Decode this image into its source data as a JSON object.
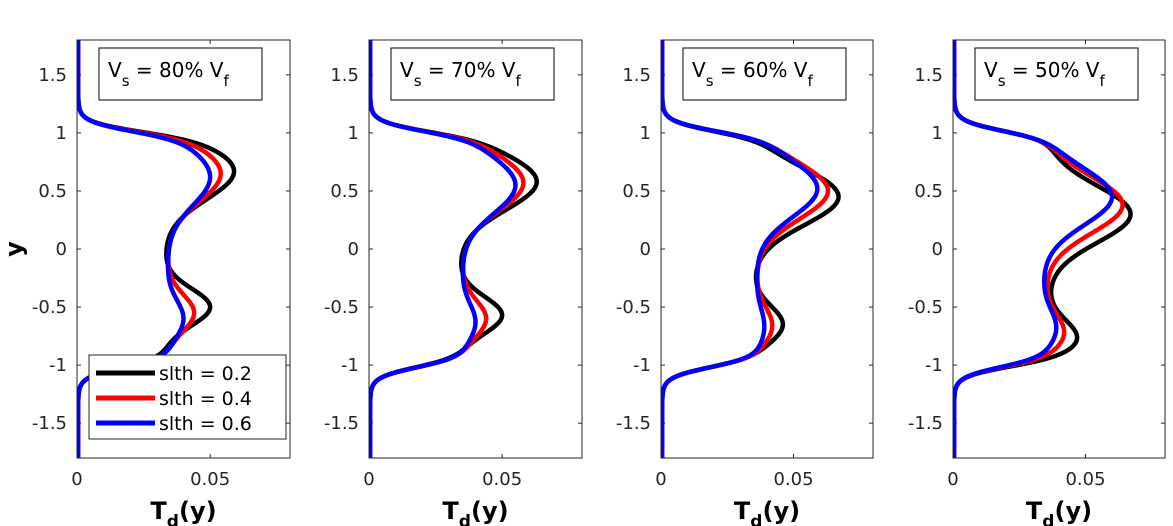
{
  "chart_data": {
    "type": "line",
    "shared": {
      "xlabel": "T",
      "xlabel_sub": "d",
      "xlabel_suffix": "(y)",
      "ylabel": "y",
      "xlim": [
        0,
        0.08
      ],
      "ylim": [
        -1.8,
        1.8
      ],
      "x_ticks": [
        0,
        0.05
      ],
      "x_tick_labels": [
        "0",
        "0.05"
      ],
      "y_ticks": [
        1.5,
        1,
        0.5,
        0,
        -0.5,
        -1,
        -1.5
      ],
      "y_tick_labels": [
        "1.5",
        "1",
        "0.5",
        "0",
        "-0.5",
        "-1",
        "-1.5"
      ],
      "series_colors": [
        "#000000",
        "#ff0000",
        "#0000ff"
      ]
    },
    "legend": {
      "placement": "bottom-left of panel 1",
      "entries": [
        "slth = 0.2",
        "slth = 0.4",
        "slth = 0.6"
      ]
    },
    "panels": [
      {
        "title_main": "V",
        "title_sub": "s",
        "title_mid": " = 80% V",
        "title_sub2": "f",
        "series": [
          {
            "name": "slth = 0.2",
            "peak_upper": 0.059,
            "peak_upper_y": 0.67,
            "min_mid": 0.033,
            "min_mid_y": 0.0,
            "peak_lower": 0.05,
            "peak_lower_y": -0.5
          },
          {
            "name": "slth = 0.4",
            "peak_upper": 0.054,
            "peak_upper_y": 0.65,
            "min_mid": 0.034,
            "min_mid_y": -0.05,
            "peak_lower": 0.044,
            "peak_lower_y": -0.55
          },
          {
            "name": "slth = 0.6",
            "peak_upper": 0.05,
            "peak_upper_y": 0.62,
            "min_mid": 0.034,
            "min_mid_y": -0.1,
            "peak_lower": 0.04,
            "peak_lower_y": -0.6
          }
        ]
      },
      {
        "title_main": "V",
        "title_sub": "s",
        "title_mid": " = 70% V",
        "title_sub2": "f",
        "series": [
          {
            "name": "slth = 0.2",
            "peak_upper": 0.063,
            "peak_upper_y": 0.58,
            "min_mid": 0.034,
            "min_mid_y": -0.05,
            "peak_lower": 0.05,
            "peak_lower_y": -0.57
          },
          {
            "name": "slth = 0.4",
            "peak_upper": 0.058,
            "peak_upper_y": 0.57,
            "min_mid": 0.035,
            "min_mid_y": -0.1,
            "peak_lower": 0.044,
            "peak_lower_y": -0.6
          },
          {
            "name": "slth = 0.6",
            "peak_upper": 0.055,
            "peak_upper_y": 0.55,
            "min_mid": 0.035,
            "min_mid_y": -0.15,
            "peak_lower": 0.04,
            "peak_lower_y": -0.63
          }
        ]
      },
      {
        "title_main": "V",
        "title_sub": "s",
        "title_mid": " = 60% V",
        "title_sub2": "f",
        "series": [
          {
            "name": "slth = 0.2",
            "peak_upper": 0.067,
            "peak_upper_y": 0.45,
            "min_mid": 0.035,
            "min_mid_y": -0.3,
            "peak_lower": 0.046,
            "peak_lower_y": -0.65
          },
          {
            "name": "slth = 0.4",
            "peak_upper": 0.063,
            "peak_upper_y": 0.5,
            "min_mid": 0.036,
            "min_mid_y": -0.3,
            "peak_lower": 0.042,
            "peak_lower_y": -0.66
          },
          {
            "name": "slth = 0.6",
            "peak_upper": 0.059,
            "peak_upper_y": 0.52,
            "min_mid": 0.036,
            "min_mid_y": -0.3,
            "peak_lower": 0.039,
            "peak_lower_y": -0.67
          }
        ]
      },
      {
        "title_main": "V",
        "title_sub": "s",
        "title_mid": " = 50% V",
        "title_sub2": "f",
        "series": [
          {
            "name": "slth = 0.2",
            "peak_upper": 0.067,
            "peak_upper_y": 0.3,
            "min_mid": 0.036,
            "min_mid_y": -0.35,
            "peak_lower": 0.047,
            "peak_lower_y": -0.77
          },
          {
            "name": "slth = 0.4",
            "peak_upper": 0.064,
            "peak_upper_y": 0.38,
            "min_mid": 0.035,
            "min_mid_y": -0.38,
            "peak_lower": 0.042,
            "peak_lower_y": -0.72
          },
          {
            "name": "slth = 0.6",
            "peak_upper": 0.06,
            "peak_upper_y": 0.45,
            "min_mid": 0.034,
            "min_mid_y": -0.4,
            "peak_lower": 0.039,
            "peak_lower_y": -0.68
          }
        ]
      }
    ]
  }
}
